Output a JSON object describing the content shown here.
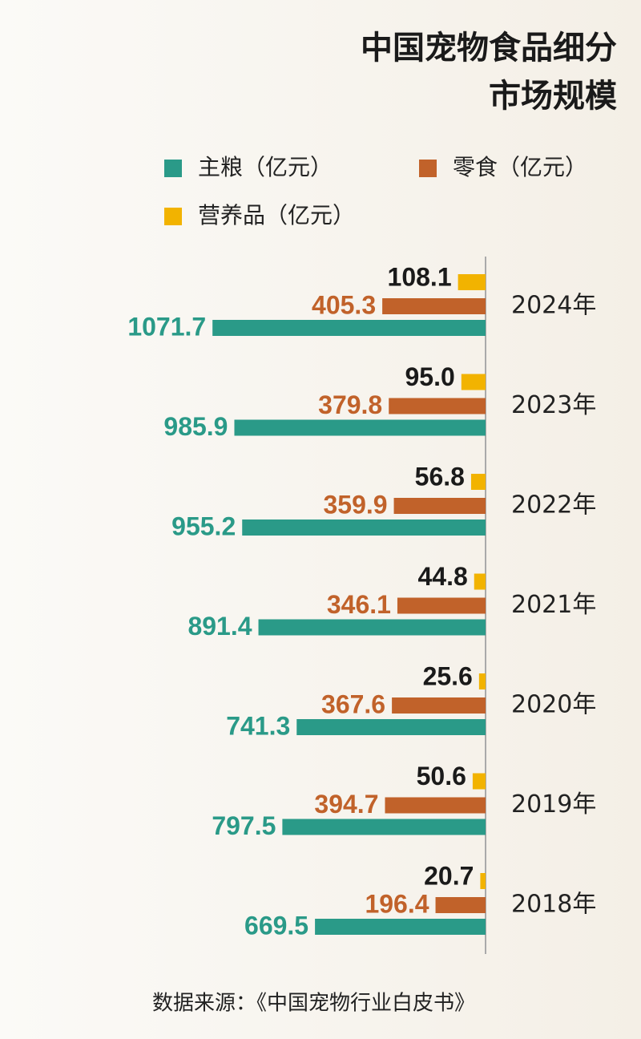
{
  "chart_data": {
    "type": "bar",
    "orientation": "horizontal",
    "title": [
      "中国宠物食品细分",
      "市场规模"
    ],
    "categories": [
      "2024年",
      "2023年",
      "2022年",
      "2021年",
      "2020年",
      "2019年",
      "2018年"
    ],
    "series": [
      {
        "name": "主粮（亿元）",
        "color": "#2a9a88",
        "values": [
          1071.7,
          985.9,
          955.2,
          891.4,
          741.3,
          797.5,
          669.5
        ]
      },
      {
        "name": "零食（亿元）",
        "color": "#c1622a",
        "values": [
          405.3,
          379.8,
          359.9,
          346.1,
          367.6,
          394.7,
          196.4
        ]
      },
      {
        "name": "营养品（亿元）",
        "color": "#f2b300",
        "values": [
          108.1,
          95,
          56.8,
          44.8,
          25.6,
          50.6,
          20.7
        ],
        "value_labels": [
          "108.1",
          "95.0",
          "56.8",
          "44.8",
          "25.6",
          "50.6",
          "20.7"
        ]
      }
    ],
    "source": "数据来源：《中国宠物行业白皮书》"
  }
}
